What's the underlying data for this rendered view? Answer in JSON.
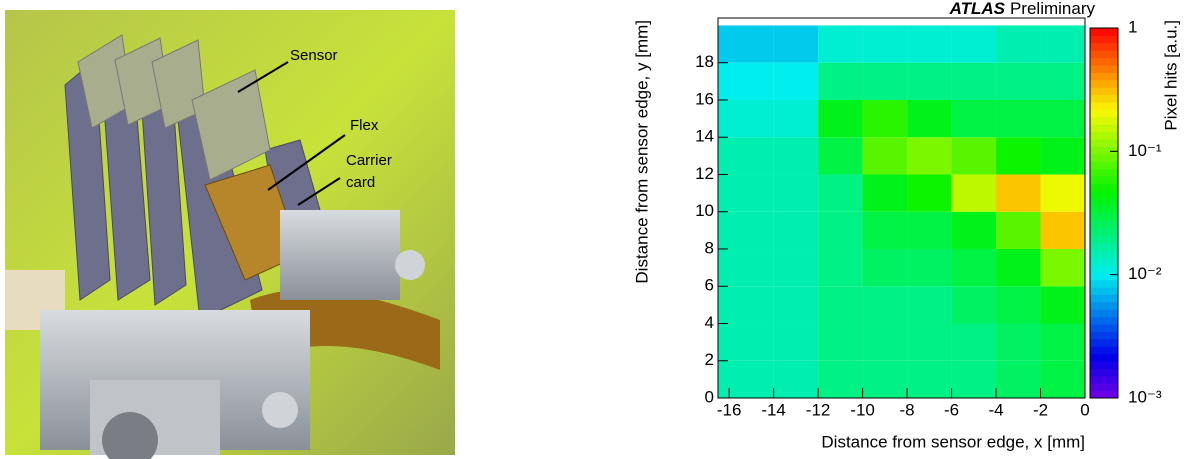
{
  "photo": {
    "labels": [
      "Sensor",
      "Flex",
      "Carrier card"
    ]
  },
  "chart_data": {
    "type": "heatmap",
    "experiment": "ATLAS",
    "status": "Preliminary",
    "x_label": "Distance from sensor edge, x [mm]",
    "y_label": "Distance from sensor edge, y [mm]",
    "z_label": "Pixel hits [a.u.]",
    "xbins": [
      -16.5,
      -14,
      -12,
      -10,
      -8,
      -6,
      -4,
      -2,
      0
    ],
    "ybins": [
      0,
      2,
      4,
      6,
      8,
      10,
      12,
      14,
      16,
      18,
      20
    ],
    "z": [
      [
        0.015,
        0.015,
        0.015,
        0.015,
        0.015,
        0.015,
        0.015,
        0.012,
        0.01,
        0.008
      ],
      [
        0.015,
        0.015,
        0.015,
        0.015,
        0.015,
        0.015,
        0.015,
        0.012,
        0.01,
        0.008
      ],
      [
        0.02,
        0.02,
        0.02,
        0.02,
        0.02,
        0.02,
        0.03,
        0.04,
        0.02,
        0.012
      ],
      [
        0.02,
        0.02,
        0.02,
        0.025,
        0.03,
        0.04,
        0.08,
        0.06,
        0.02,
        0.012
      ],
      [
        0.02,
        0.02,
        0.02,
        0.025,
        0.03,
        0.05,
        0.1,
        0.04,
        0.02,
        0.012
      ],
      [
        0.02,
        0.02,
        0.025,
        0.03,
        0.04,
        0.15,
        0.08,
        0.03,
        0.02,
        0.012
      ],
      [
        0.025,
        0.025,
        0.03,
        0.04,
        0.08,
        0.3,
        0.05,
        0.03,
        0.02,
        0.015
      ],
      [
        0.03,
        0.03,
        0.04,
        0.1,
        0.3,
        0.2,
        0.04,
        0.03,
        0.02,
        0.015
      ]
    ],
    "xlim": [
      -16.5,
      0
    ],
    "ylim": [
      0,
      20.4
    ],
    "zlim": [
      0.001,
      1
    ],
    "zlog": true,
    "xticks": [
      -16,
      -14,
      -12,
      -10,
      -8,
      -6,
      -4,
      -2,
      0
    ],
    "yticks": [
      0,
      2,
      4,
      6,
      8,
      10,
      12,
      14,
      16,
      18
    ],
    "zticks": [
      {
        "value": 0.001,
        "label": "10⁻³"
      },
      {
        "value": 0.01,
        "label": "10⁻²"
      },
      {
        "value": 0.1,
        "label": "10⁻¹"
      },
      1
    ]
  }
}
